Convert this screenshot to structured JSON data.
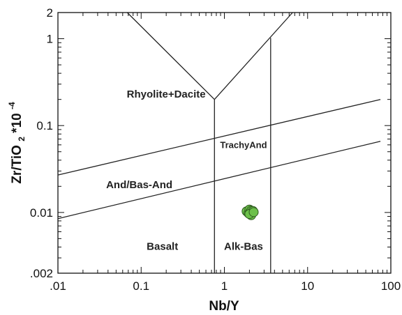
{
  "chart_data": {
    "type": "scatter",
    "xlabel": "Nb/Y",
    "ylabel_main": "Zr/TiO",
    "ylabel_sub": "2",
    "ylabel_mult": "*10",
    "ylabel_exp": "-4",
    "xscale": "log",
    "yscale": "log",
    "xlim": [
      0.01,
      100
    ],
    "ylim": [
      0.002,
      2
    ],
    "x_ticks": [
      {
        "value": 0.01,
        "label": ".01"
      },
      {
        "value": 0.1,
        "label": "0.1"
      },
      {
        "value": 1,
        "label": "1"
      },
      {
        "value": 10,
        "label": "10"
      },
      {
        "value": 100,
        "label": "100"
      }
    ],
    "y_ticks": [
      {
        "value": 0.002,
        "label": ".002"
      },
      {
        "value": 0.01,
        "label": "0.01"
      },
      {
        "value": 0.1,
        "label": "0.1"
      },
      {
        "value": 1,
        "label": "1"
      },
      {
        "value": 2,
        "label": "2"
      }
    ],
    "grid": false,
    "boundaries": [
      {
        "name": "upper-sloped-line",
        "points": [
          [
            0.01,
            0.027
          ],
          [
            75,
            0.2
          ]
        ]
      },
      {
        "name": "lower-sloped-line",
        "points": [
          [
            0.01,
            0.0085
          ],
          [
            75,
            0.066
          ]
        ]
      },
      {
        "name": "v-left-arm",
        "points": [
          [
            0.068,
            2
          ],
          [
            0.76,
            0.2
          ]
        ]
      },
      {
        "name": "v-right-arm",
        "points": [
          [
            0.76,
            0.2
          ],
          [
            6.6,
            2
          ]
        ]
      },
      {
        "name": "left-vertical",
        "points": [
          [
            0.76,
            0.2
          ],
          [
            0.76,
            0.002
          ]
        ]
      },
      {
        "name": "right-vertical",
        "points": [
          [
            3.6,
            1.02
          ],
          [
            3.6,
            0.002
          ]
        ]
      }
    ],
    "field_labels": [
      {
        "text": "Rhyolite+Dacite",
        "x": 0.2,
        "y": 0.21,
        "size": "normal"
      },
      {
        "text": "TrachyAnd",
        "x": 1.7,
        "y": 0.055,
        "size": "small"
      },
      {
        "text": "And/Bas-And",
        "x": 0.095,
        "y": 0.019,
        "size": "normal"
      },
      {
        "text": "Basalt",
        "x": 0.18,
        "y": 0.0037,
        "size": "normal"
      },
      {
        "text": "Alk-Bas",
        "x": 1.7,
        "y": 0.0037,
        "size": "normal"
      }
    ],
    "points": [
      {
        "x": 1.85,
        "y": 0.0103
      },
      {
        "x": 1.95,
        "y": 0.0098
      },
      {
        "x": 2.0,
        "y": 0.0108
      },
      {
        "x": 2.05,
        "y": 0.0101
      },
      {
        "x": 2.1,
        "y": 0.0105
      },
      {
        "x": 2.15,
        "y": 0.0099
      },
      {
        "x": 2.2,
        "y": 0.0104
      },
      {
        "x": 2.1,
        "y": 0.0093
      },
      {
        "x": 2.0,
        "y": 0.0096
      },
      {
        "x": 2.25,
        "y": 0.0101
      }
    ],
    "marker_fill": "#6cc04a",
    "marker_stroke": "#2e5a1f",
    "line_color": "#222222"
  }
}
